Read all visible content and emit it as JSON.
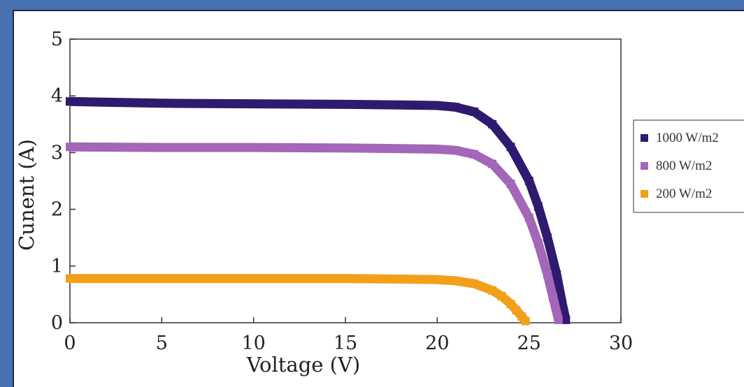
{
  "colors": {
    "background": "#4a72b0",
    "panel": "#ffffff",
    "axis": "#333333"
  },
  "chart_data": {
    "type": "line",
    "title": "",
    "xlabel": "Voltage (V)",
    "ylabel": "Cunent (A)",
    "xlim": [
      0,
      30
    ],
    "ylim": [
      0,
      5
    ],
    "xticks": [
      "0",
      "5",
      "10",
      "15",
      "20",
      "25",
      "30"
    ],
    "yticks": [
      "0",
      "1",
      "2",
      "3",
      "4",
      "5"
    ],
    "grid": false,
    "legend_position": "right",
    "series": [
      {
        "name": "1000 W/m2",
        "color": "#2e1a6e",
        "x": [
          0,
          5,
          10,
          15,
          18,
          20,
          21,
          22,
          23,
          24,
          25,
          25.5,
          26,
          26.5,
          26.8,
          27.0
        ],
        "y": [
          3.9,
          3.87,
          3.86,
          3.85,
          3.84,
          3.83,
          3.8,
          3.72,
          3.5,
          3.1,
          2.5,
          2.05,
          1.5,
          0.85,
          0.35,
          0.05
        ]
      },
      {
        "name": "800 W/m2",
        "color": "#a366b8",
        "x": [
          0,
          5,
          10,
          15,
          18,
          20,
          21,
          22,
          23,
          24,
          25,
          25.5,
          26,
          26.3,
          26.6
        ],
        "y": [
          3.1,
          3.09,
          3.09,
          3.08,
          3.07,
          3.06,
          3.04,
          2.97,
          2.8,
          2.45,
          1.85,
          1.4,
          0.85,
          0.45,
          0.05
        ]
      },
      {
        "name": "200 W/m2",
        "color": "#f2a01b",
        "x": [
          0,
          5,
          10,
          15,
          18,
          20,
          21,
          22,
          23,
          23.5,
          24,
          24.3,
          24.6,
          24.8
        ],
        "y": [
          0.78,
          0.78,
          0.78,
          0.78,
          0.77,
          0.76,
          0.74,
          0.69,
          0.57,
          0.47,
          0.33,
          0.22,
          0.11,
          0.03
        ]
      }
    ]
  }
}
